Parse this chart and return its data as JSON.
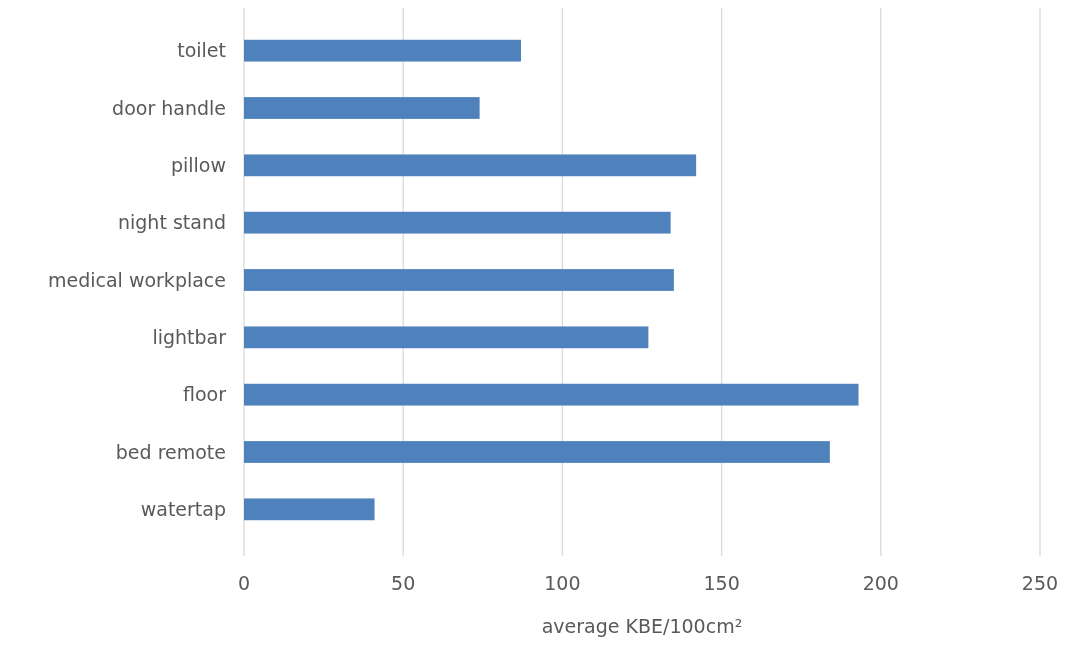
{
  "chart_data": {
    "type": "bar",
    "orientation": "horizontal",
    "xlabel": "average KBE/100cm²",
    "categories": [
      "toilet",
      "door handle",
      "pillow",
      "night stand",
      "medical workplace",
      "lightbar",
      "floor",
      "bed remote",
      "watertap"
    ],
    "values": [
      87,
      74,
      142,
      134,
      135,
      127,
      193,
      184,
      41
    ],
    "color": "#4f81bd",
    "xlim": [
      0,
      250
    ],
    "xticks": [
      0,
      50,
      100,
      150,
      200,
      250
    ],
    "grid": "x"
  }
}
